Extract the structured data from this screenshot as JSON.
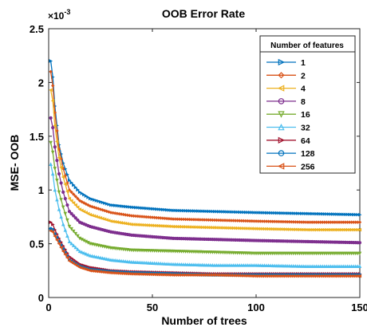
{
  "chart_data": {
    "type": "line",
    "title": "OOB Error Rate",
    "xlabel": "Number of trees",
    "ylabel": "MSE- OOB",
    "y_exponent_label": "×10",
    "y_exponent_power": "-3",
    "xlim": [
      0,
      150
    ],
    "ylim": [
      0,
      2.5
    ],
    "xticks": [
      "0",
      "50",
      "100",
      "150"
    ],
    "xtick_values": [
      0,
      50,
      100,
      150
    ],
    "yticks": [
      "0",
      "0.5",
      "1",
      "1.5",
      "2",
      "2.5"
    ],
    "ytick_values": [
      0,
      0.5,
      1,
      1.5,
      2,
      2.5
    ],
    "grid": false,
    "legend_position": "top-right",
    "legend_title": "Number of features",
    "x": [
      1,
      2,
      3,
      5,
      7,
      10,
      15,
      20,
      30,
      40,
      60,
      80,
      100,
      125,
      150
    ],
    "series": [
      {
        "name": "1",
        "color": "#0072bd",
        "marker": "triangle-right",
        "values": [
          2.2,
          2.05,
          1.78,
          1.42,
          1.25,
          1.09,
          0.98,
          0.92,
          0.86,
          0.84,
          0.81,
          0.8,
          0.79,
          0.78,
          0.77
        ]
      },
      {
        "name": "2",
        "color": "#d95319",
        "marker": "diamond",
        "values": [
          2.1,
          1.97,
          1.72,
          1.38,
          1.2,
          1.0,
          0.9,
          0.85,
          0.79,
          0.76,
          0.73,
          0.72,
          0.71,
          0.7,
          0.7
        ]
      },
      {
        "name": "4",
        "color": "#edb120",
        "marker": "triangle-left",
        "values": [
          1.93,
          1.83,
          1.6,
          1.3,
          1.12,
          0.92,
          0.82,
          0.77,
          0.71,
          0.68,
          0.66,
          0.65,
          0.64,
          0.63,
          0.63
        ]
      },
      {
        "name": "8",
        "color": "#7e2f8e",
        "marker": "circle",
        "values": [
          1.67,
          1.58,
          1.4,
          1.15,
          0.98,
          0.8,
          0.7,
          0.66,
          0.61,
          0.58,
          0.55,
          0.54,
          0.53,
          0.52,
          0.51
        ]
      },
      {
        "name": "16",
        "color": "#77ac30",
        "marker": "triangle-down",
        "values": [
          1.44,
          1.35,
          1.2,
          0.98,
          0.84,
          0.66,
          0.55,
          0.5,
          0.46,
          0.44,
          0.43,
          0.42,
          0.41,
          0.41,
          0.41
        ]
      },
      {
        "name": "32",
        "color": "#4dbeee",
        "marker": "triangle-up",
        "values": [
          1.24,
          1.15,
          1.0,
          0.82,
          0.68,
          0.52,
          0.43,
          0.39,
          0.35,
          0.33,
          0.31,
          0.3,
          0.3,
          0.29,
          0.29
        ]
      },
      {
        "name": "64",
        "color": "#a2142f",
        "marker": "triangle-right",
        "values": [
          0.7,
          0.68,
          0.63,
          0.55,
          0.48,
          0.38,
          0.31,
          0.28,
          0.25,
          0.24,
          0.23,
          0.22,
          0.22,
          0.22,
          0.22
        ]
      },
      {
        "name": "128",
        "color": "#0072bd",
        "marker": "circle",
        "values": [
          0.64,
          0.63,
          0.59,
          0.52,
          0.45,
          0.35,
          0.29,
          0.26,
          0.24,
          0.23,
          0.22,
          0.21,
          0.21,
          0.21,
          0.21
        ]
      },
      {
        "name": "256",
        "color": "#d95319",
        "marker": "triangle-left",
        "values": [
          0.62,
          0.61,
          0.57,
          0.5,
          0.43,
          0.34,
          0.28,
          0.25,
          0.23,
          0.22,
          0.21,
          0.21,
          0.2,
          0.2,
          0.2
        ]
      }
    ]
  }
}
